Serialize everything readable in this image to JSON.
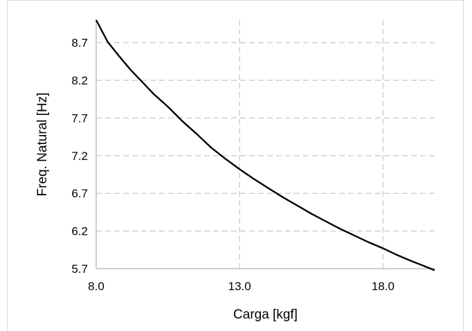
{
  "chart_data": {
    "type": "line",
    "title": "",
    "xlabel": "Carga [kgf]",
    "ylabel": "Freq. Natural [Hz]",
    "xlim": [
      8.0,
      19.8
    ],
    "ylim": [
      5.7,
      9.0
    ],
    "x_ticks": [
      "8.0",
      "13.0",
      "18.0"
    ],
    "y_ticks": [
      "5.7",
      "6.2",
      "6.7",
      "7.2",
      "7.7",
      "8.2",
      "8.7"
    ],
    "grid": true,
    "grid_style": "dashed",
    "line_color": "#000000",
    "series": [
      {
        "x": [
          8.0,
          8.4,
          8.8,
          9.2,
          9.6,
          10.0,
          10.5,
          11.0,
          11.5,
          12.0,
          12.5,
          13.0,
          13.5,
          14.0,
          14.5,
          15.0,
          15.5,
          16.0,
          16.5,
          17.0,
          17.5,
          18.0,
          18.5,
          19.0,
          19.4,
          19.8
        ],
        "y": [
          9.0,
          8.71,
          8.52,
          8.34,
          8.18,
          8.02,
          7.85,
          7.66,
          7.49,
          7.31,
          7.16,
          7.02,
          6.89,
          6.77,
          6.65,
          6.54,
          6.43,
          6.33,
          6.23,
          6.14,
          6.05,
          5.97,
          5.88,
          5.8,
          5.74,
          5.68
        ]
      }
    ]
  }
}
